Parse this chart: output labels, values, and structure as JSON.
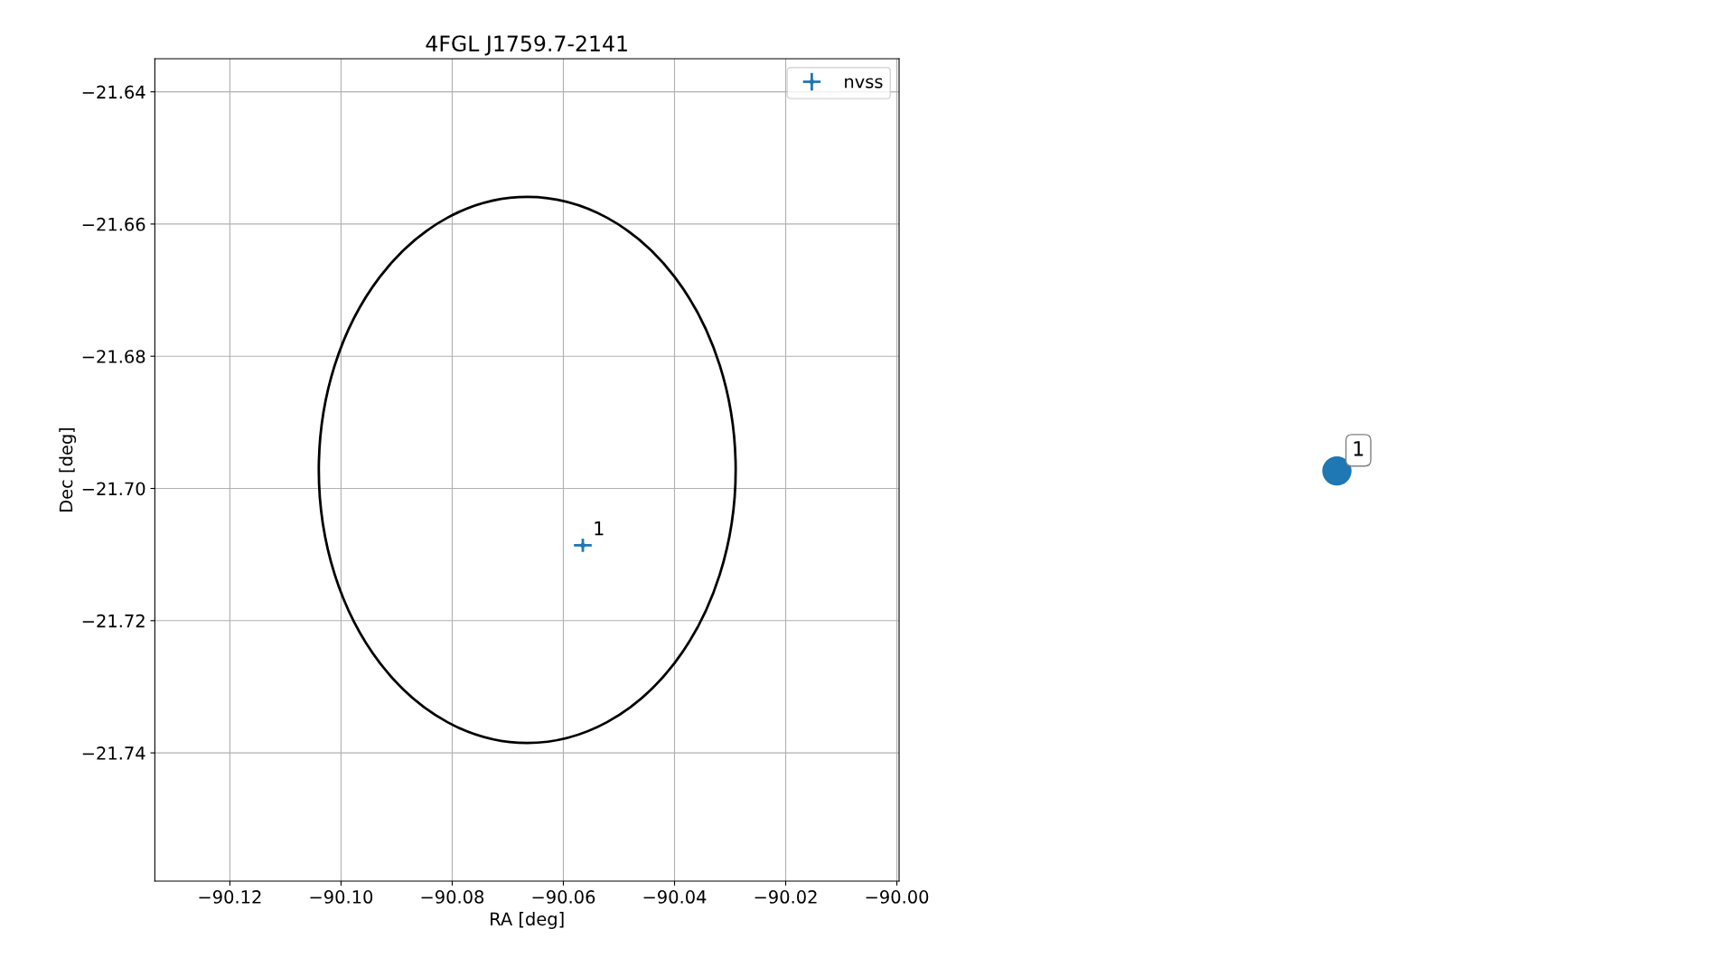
{
  "chart_data": [
    {
      "type": "scatter",
      "title": "4FGL J1759.7-2141",
      "xlabel": "RA [deg]",
      "ylabel": "Dec [deg]",
      "xlim": [
        -90.1335,
        -89.9996
      ],
      "ylim": [
        -21.7594,
        -21.635
      ],
      "xticks": [
        {
          "value": -90.12,
          "label": "−90.12"
        },
        {
          "value": -90.1,
          "label": "−90.10"
        },
        {
          "value": -90.08,
          "label": "−90.08"
        },
        {
          "value": -90.06,
          "label": "−90.06"
        },
        {
          "value": -90.04,
          "label": "−90.04"
        },
        {
          "value": -90.02,
          "label": "−90.02"
        },
        {
          "value": -90.0,
          "label": "−90.00"
        }
      ],
      "yticks": [
        {
          "value": -21.64,
          "label": "−21.64"
        },
        {
          "value": -21.66,
          "label": "−21.66"
        },
        {
          "value": -21.68,
          "label": "−21.68"
        },
        {
          "value": -21.7,
          "label": "−21.70"
        },
        {
          "value": -21.72,
          "label": "−21.72"
        },
        {
          "value": -21.74,
          "label": "−21.74"
        }
      ],
      "grid": true,
      "legend": "top right",
      "series": [
        {
          "name": "nvss",
          "type": "scatter",
          "color": "#1f77b4",
          "marker": "circle",
          "x": [
            -90.0565
          ],
          "values": [
            -21.7086
          ],
          "errors": [
            0.001
          ],
          "xerrors": [
            0.0016
          ]
        }
      ],
      "annotations": [
        {
          "text": "1",
          "x": -90.0565,
          "y": -21.7086
        }
      ]
    },
    {
      "type": "other",
      "color": "#1f77b4",
      "annotations": [
        "1"
      ]
    }
  ]
}
